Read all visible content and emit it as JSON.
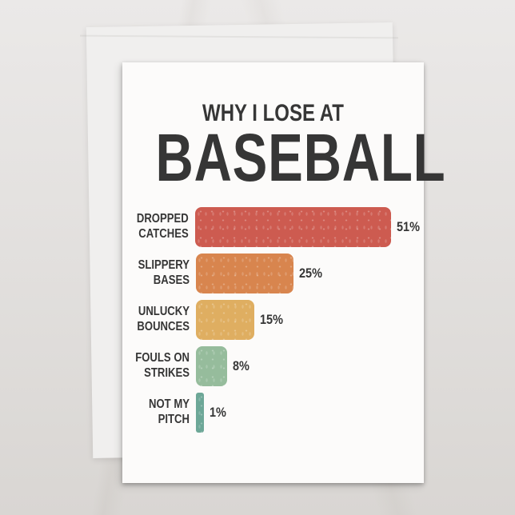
{
  "scene": {
    "background_color_top": "#ebe9e8",
    "background_color_bottom": "#d9d6d3",
    "envelope_color": "#f0efee",
    "card_color": "#fcfbfa",
    "ink_color": "#363636"
  },
  "card": {
    "title_line1": "WHY I LOSE AT",
    "title_line2": "BASEBALL"
  },
  "chart_data": {
    "type": "bar",
    "orientation": "horizontal",
    "title": "WHY I LOSE AT BASEBALL",
    "xlabel": "",
    "ylabel": "",
    "xlim": [
      0,
      55
    ],
    "grid": false,
    "legend": null,
    "categories": [
      "DROPPED CATCHES",
      "SLIPPERY BASES",
      "UNLUCKY BOUNCES",
      "FOULS ON STRIKES",
      "NOT MY PITCH"
    ],
    "values": [
      51,
      25,
      15,
      8,
      1
    ],
    "rows": [
      {
        "label_line1": "DROPPED",
        "label_line2": "CATCHES",
        "value": 51,
        "pct": "51%",
        "color": "#cd5b50"
      },
      {
        "label_line1": "SLIPPERY",
        "label_line2": "BASES",
        "value": 25,
        "pct": "25%",
        "color": "#d8854e"
      },
      {
        "label_line1": "UNLUCKY",
        "label_line2": "BOUNCES",
        "value": 15,
        "pct": "15%",
        "color": "#dfae61"
      },
      {
        "label_line1": "FOULS ON",
        "label_line2": "STRIKES",
        "value": 8,
        "pct": "8%",
        "color": "#96bc9c"
      },
      {
        "label_line1": "NOT MY",
        "label_line2": "PITCH",
        "value": 1,
        "pct": "1%",
        "color": "#6da797"
      }
    ]
  }
}
